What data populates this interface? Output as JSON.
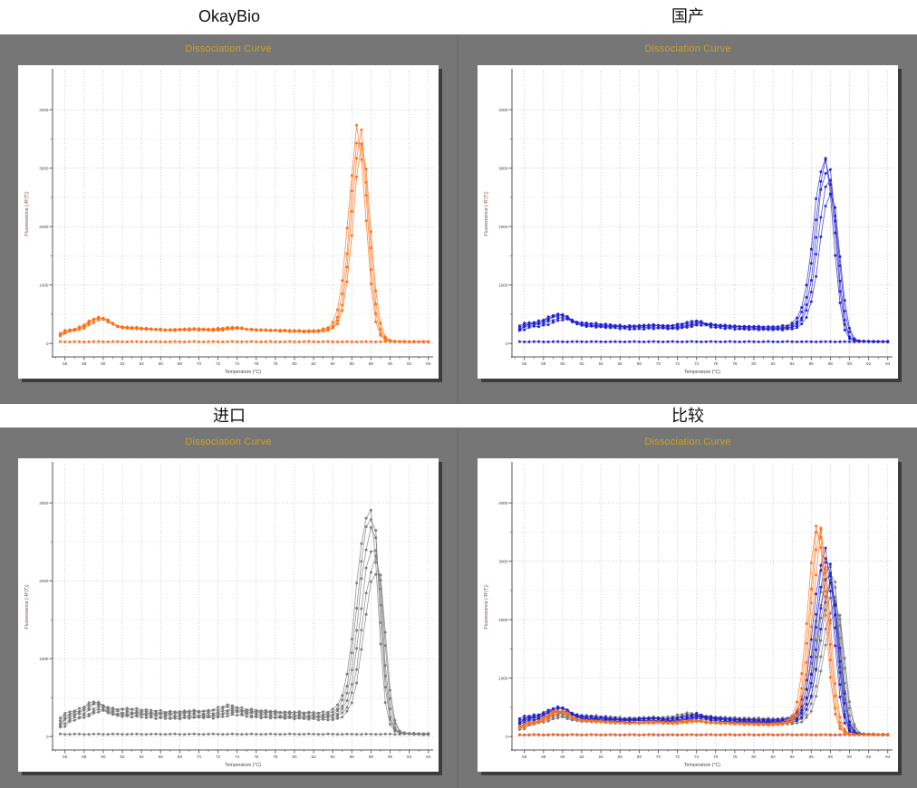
{
  "colors": {
    "panel_background": "#767676",
    "plot_background": "#ffffff",
    "plot_shadow": "#3c3c3c",
    "header_text": "#c9a227",
    "axis_line": "#555555",
    "tick_label_text": "#444444",
    "ylabel_text": "#7a4444",
    "grid_major": "#b0b0b0",
    "grid_minor": "#cfcfcf",
    "okaybio_orange": "#ff6e14",
    "guochan_blue": "#2121cf",
    "jinkou_gray": "#7b7b7b"
  },
  "chart_data": {
    "type": "line",
    "description": "Four qPCR melt-curve (dissociation) plots: OkayBio (orange), domestic (blue), imported (gray), and an overlay comparison.",
    "charts": [
      {
        "panel_title": "OkayBio",
        "title": "Dissociation Curve",
        "xlabel": "Temperature (°C)",
        "ylabel": "Fluorescence (-R'(T))",
        "xlim": [
          55,
          94
        ],
        "x_ticks": [
          56,
          58,
          60,
          62,
          64,
          66,
          68,
          70,
          72,
          74,
          76,
          78,
          80,
          82,
          84,
          86,
          88,
          90,
          92,
          94
        ],
        "ylim": [
          0,
          4000
        ],
        "y_major_ticks": [
          0,
          1000,
          2000,
          3000,
          4000
        ],
        "y_minor_step": 500,
        "grid": "dotted",
        "legend": "none",
        "groups": [
          "okaybio"
        ]
      },
      {
        "panel_title": "国产",
        "title": "Dissociation Curve",
        "xlabel": "Temperature (°C)",
        "ylabel": "Fluorescence (-R'(T))",
        "xlim": [
          55,
          94
        ],
        "x_ticks": [
          56,
          58,
          60,
          62,
          64,
          66,
          68,
          70,
          72,
          74,
          76,
          78,
          80,
          82,
          84,
          86,
          88,
          90,
          92,
          94
        ],
        "ylim": [
          0,
          4000
        ],
        "y_major_ticks": [
          0,
          1000,
          2000,
          3000,
          4000
        ],
        "y_minor_step": 500,
        "grid": "dotted",
        "legend": "none",
        "groups": [
          "guochan"
        ]
      },
      {
        "panel_title": "进口",
        "title": "Dissociation Curve",
        "xlabel": "Temperature (°C)",
        "ylabel": "Fluorescence (-R'(T))",
        "xlim": [
          55,
          94
        ],
        "x_ticks": [
          56,
          58,
          60,
          62,
          64,
          66,
          68,
          70,
          72,
          74,
          76,
          78,
          80,
          82,
          84,
          86,
          88,
          90,
          92,
          94
        ],
        "ylim": [
          0,
          3000
        ],
        "y_major_ticks": [
          0,
          1000,
          2000,
          3000
        ],
        "y_minor_step": 500,
        "grid": "dotted",
        "legend": "none",
        "groups": [
          "jinkou"
        ]
      },
      {
        "panel_title": "比较",
        "title": "Dissociation Curve",
        "xlabel": "Temperature (°C)",
        "ylabel": "Fluorescence (-R'(T))",
        "xlim": [
          55,
          94
        ],
        "x_ticks": [
          56,
          58,
          60,
          62,
          64,
          66,
          68,
          70,
          72,
          74,
          76,
          78,
          80,
          82,
          84,
          86,
          88,
          90,
          92,
          94
        ],
        "ylim": [
          0,
          4000
        ],
        "y_major_ticks": [
          0,
          1000,
          2000,
          3000,
          4000
        ],
        "y_minor_step": 500,
        "grid": "dotted",
        "legend": "none",
        "groups": [
          "jinkou",
          "guochan",
          "okaybio"
        ]
      }
    ],
    "groups": {
      "okaybio": {
        "label": "OkayBio replicates (orange)",
        "color": "#ff6e14",
        "replicates": 4,
        "peak_scales": [
          1,
          0.98,
          0.96,
          0.93
        ],
        "baseline_value": 30,
        "tm_peak_c": 86.8,
        "peak_height": 3780,
        "profile": [
          [
            55.5,
            140
          ],
          [
            56,
            210
          ],
          [
            56.5,
            230
          ],
          [
            57,
            240
          ],
          [
            57.5,
            260
          ],
          [
            58,
            300
          ],
          [
            58.5,
            360
          ],
          [
            59,
            410
          ],
          [
            59.5,
            450
          ],
          [
            60,
            440
          ],
          [
            60.5,
            410
          ],
          [
            61,
            340
          ],
          [
            61.5,
            300
          ],
          [
            62,
            285
          ],
          [
            63,
            270
          ],
          [
            64,
            265
          ],
          [
            65,
            250
          ],
          [
            66,
            245
          ],
          [
            67,
            235
          ],
          [
            68,
            245
          ],
          [
            69,
            250
          ],
          [
            70,
            255
          ],
          [
            71,
            240
          ],
          [
            72,
            245
          ],
          [
            73,
            265
          ],
          [
            74,
            275
          ],
          [
            74.5,
            270
          ],
          [
            75,
            250
          ],
          [
            76,
            240
          ],
          [
            77,
            235
          ],
          [
            78,
            230
          ],
          [
            79,
            225
          ],
          [
            80,
            220
          ],
          [
            81,
            215
          ],
          [
            82,
            215
          ],
          [
            83,
            225
          ],
          [
            84,
            290
          ],
          [
            84.5,
            420
          ],
          [
            85,
            750
          ],
          [
            85.5,
            1450
          ],
          [
            86,
            2500
          ],
          [
            86.5,
            3450
          ],
          [
            86.8,
            3780
          ],
          [
            87,
            3650
          ],
          [
            87.5,
            2750
          ],
          [
            88,
            1450
          ],
          [
            88.5,
            560
          ],
          [
            89,
            190
          ],
          [
            89.5,
            75
          ],
          [
            90,
            45
          ],
          [
            90.5,
            35
          ],
          [
            91,
            32
          ],
          [
            92,
            30
          ],
          [
            93,
            30
          ],
          [
            94,
            30
          ]
        ]
      },
      "guochan": {
        "label": "国产 replicates (blue)",
        "color": "#2121cf",
        "replicates": 5,
        "peak_scales": [
          1,
          0.97,
          0.93,
          0.88,
          0.82
        ],
        "baseline_value": 30,
        "tm_peak_c": 87.8,
        "peak_height": 3220,
        "profile": [
          [
            55.5,
            260
          ],
          [
            56,
            330
          ],
          [
            56.5,
            350
          ],
          [
            57,
            360
          ],
          [
            57.5,
            370
          ],
          [
            58,
            390
          ],
          [
            58.5,
            430
          ],
          [
            59,
            470
          ],
          [
            59.5,
            500
          ],
          [
            60,
            510
          ],
          [
            60.5,
            480
          ],
          [
            61,
            420
          ],
          [
            61.5,
            380
          ],
          [
            62,
            355
          ],
          [
            63,
            340
          ],
          [
            64,
            330
          ],
          [
            65,
            320
          ],
          [
            66,
            310
          ],
          [
            67,
            300
          ],
          [
            68,
            310
          ],
          [
            69,
            315
          ],
          [
            70,
            320
          ],
          [
            71,
            300
          ],
          [
            72,
            310
          ],
          [
            73,
            340
          ],
          [
            74,
            380
          ],
          [
            74.5,
            390
          ],
          [
            75,
            350
          ],
          [
            76,
            330
          ],
          [
            77,
            315
          ],
          [
            78,
            305
          ],
          [
            79,
            295
          ],
          [
            80,
            290
          ],
          [
            81,
            285
          ],
          [
            82,
            280
          ],
          [
            83,
            285
          ],
          [
            84,
            310
          ],
          [
            84.5,
            360
          ],
          [
            85,
            480
          ],
          [
            85.5,
            700
          ],
          [
            86,
            1150
          ],
          [
            86.5,
            1950
          ],
          [
            87,
            2750
          ],
          [
            87.5,
            3150
          ],
          [
            87.8,
            3220
          ],
          [
            88,
            3120
          ],
          [
            88.5,
            2250
          ],
          [
            89,
            1150
          ],
          [
            89.5,
            420
          ],
          [
            90,
            130
          ],
          [
            90.5,
            55
          ],
          [
            91,
            40
          ],
          [
            92,
            36
          ],
          [
            93,
            34
          ],
          [
            94,
            34
          ]
        ]
      },
      "jinkou": {
        "label": "进口 replicates (gray)",
        "color": "#7b7b7b",
        "replicates": 6,
        "peak_scales": [
          1,
          0.96,
          0.9,
          0.84,
          0.78,
          0.72
        ],
        "baseline_value": 30,
        "tm_peak_c": 88.3,
        "peak_height": 2950,
        "profile": [
          [
            55.5,
            170
          ],
          [
            56,
            260
          ],
          [
            56.5,
            300
          ],
          [
            57,
            320
          ],
          [
            57.5,
            340
          ],
          [
            58,
            360
          ],
          [
            58.5,
            400
          ],
          [
            59,
            440
          ],
          [
            59.5,
            460
          ],
          [
            60,
            430
          ],
          [
            60.5,
            390
          ],
          [
            61,
            365
          ],
          [
            62,
            350
          ],
          [
            63,
            355
          ],
          [
            64,
            345
          ],
          [
            65,
            335
          ],
          [
            66,
            330
          ],
          [
            67,
            320
          ],
          [
            68,
            325
          ],
          [
            69,
            330
          ],
          [
            70,
            335
          ],
          [
            71,
            325
          ],
          [
            72,
            345
          ],
          [
            73,
            385
          ],
          [
            73.5,
            400
          ],
          [
            74,
            385
          ],
          [
            75,
            355
          ],
          [
            76,
            345
          ],
          [
            77,
            335
          ],
          [
            78,
            330
          ],
          [
            79,
            320
          ],
          [
            80,
            315
          ],
          [
            81,
            310
          ],
          [
            82,
            305
          ],
          [
            83,
            300
          ],
          [
            84,
            315
          ],
          [
            84.5,
            350
          ],
          [
            85,
            420
          ],
          [
            85.5,
            560
          ],
          [
            86,
            850
          ],
          [
            86.5,
            1400
          ],
          [
            87,
            2100
          ],
          [
            87.5,
            2640
          ],
          [
            88,
            2890
          ],
          [
            88.3,
            2950
          ],
          [
            88.7,
            2780
          ],
          [
            89,
            2050
          ],
          [
            89.5,
            950
          ],
          [
            90,
            320
          ],
          [
            90.5,
            110
          ],
          [
            91,
            55
          ],
          [
            92,
            42
          ],
          [
            93,
            38
          ],
          [
            94,
            36
          ]
        ]
      }
    }
  }
}
